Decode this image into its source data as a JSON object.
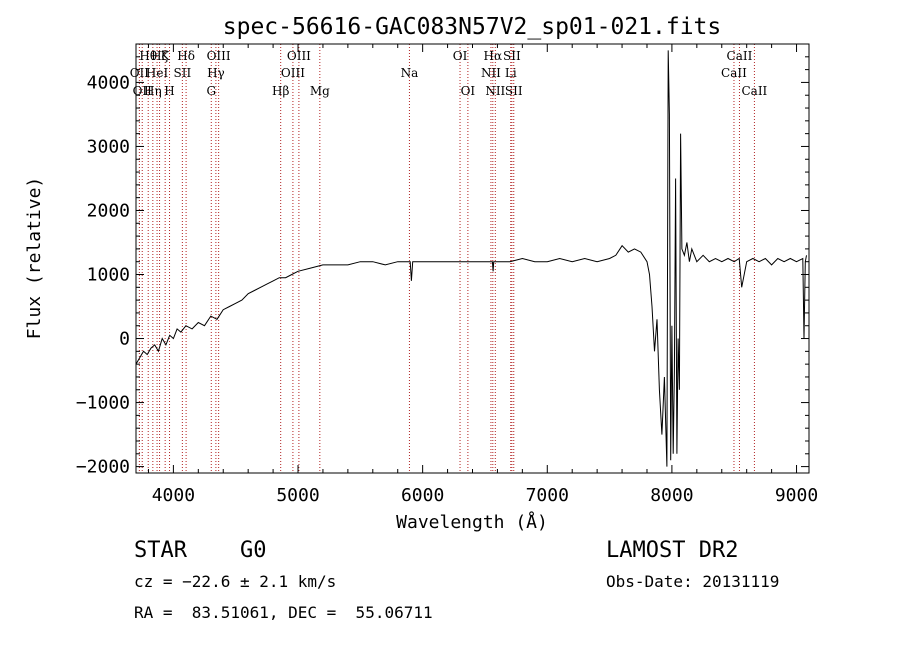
{
  "chart_data": {
    "type": "line",
    "title": "spec-56616-GAC083N57V2_sp01-021.fits",
    "xlabel": "Wavelength (Å)",
    "ylabel": "Flux (relative)",
    "xlim": [
      3700,
      9100
    ],
    "ylim": [
      -2100,
      4600
    ],
    "x_ticks": [
      4000,
      5000,
      6000,
      7000,
      8000,
      9000
    ],
    "x_tick_labels": [
      "4000",
      "5000",
      "6000",
      "7000",
      "8000",
      "9000"
    ],
    "y_ticks": [
      -2000,
      -1000,
      0,
      1000,
      2000,
      3000,
      4000
    ],
    "y_tick_labels": [
      "−2000",
      "−1000",
      "0",
      "1000",
      "2000",
      "3000",
      "4000"
    ],
    "grid": false,
    "line_color": "#000000",
    "marker_color": "#b22222",
    "series": [
      {
        "x": [
          3700,
          3730,
          3760,
          3790,
          3820,
          3850,
          3880,
          3910,
          3940,
          3970,
          4000,
          4030,
          4060,
          4100,
          4150,
          4200,
          4250,
          4300,
          4350,
          4400,
          4450,
          4500,
          4550,
          4600,
          4650,
          4700,
          4750,
          4800,
          4850,
          4900,
          4950,
          5000,
          5100,
          5200,
          5300,
          5400,
          5500,
          5600,
          5700,
          5800,
          5900,
          5910,
          5920,
          6000,
          6100,
          6200,
          6300,
          6400,
          6500,
          6560,
          6565,
          6570,
          6600,
          6700,
          6800,
          6900,
          7000,
          7100,
          7200,
          7300,
          7400,
          7500,
          7550,
          7600,
          7650,
          7700,
          7750,
          7800,
          7820,
          7840,
          7860,
          7880,
          7900,
          7920,
          7940,
          7960,
          7970,
          7980,
          7990,
          8000,
          8010,
          8020,
          8030,
          8040,
          8050,
          8060,
          8070,
          8080,
          8100,
          8120,
          8140,
          8160,
          8180,
          8200,
          8250,
          8300,
          8350,
          8400,
          8450,
          8500,
          8540,
          8560,
          8600,
          8650,
          8700,
          8750,
          8800,
          8850,
          8900,
          8950,
          9000,
          9050,
          9060,
          9070,
          9080
        ],
        "y": [
          -400,
          -300,
          -200,
          -250,
          -150,
          -100,
          -200,
          0,
          -100,
          50,
          0,
          150,
          100,
          200,
          150,
          250,
          200,
          350,
          300,
          450,
          500,
          550,
          600,
          700,
          750,
          800,
          850,
          900,
          950,
          950,
          1000,
          1050,
          1100,
          1150,
          1150,
          1150,
          1200,
          1200,
          1150,
          1200,
          1200,
          900,
          1200,
          1200,
          1200,
          1200,
          1200,
          1200,
          1200,
          1200,
          1050,
          1200,
          1200,
          1200,
          1250,
          1200,
          1200,
          1250,
          1200,
          1250,
          1200,
          1250,
          1300,
          1450,
          1350,
          1400,
          1350,
          1200,
          1000,
          500,
          -200,
          300,
          -800,
          -1500,
          -600,
          -2000,
          4500,
          3500,
          -1900,
          200,
          -1800,
          -500,
          2500,
          -1800,
          0,
          -800,
          3200,
          1400,
          1300,
          1500,
          1200,
          1400,
          1300,
          1200,
          1300,
          1200,
          1250,
          1200,
          1250,
          1200,
          1250,
          800,
          1200,
          1250,
          1200,
          1250,
          1150,
          1250,
          1200,
          1250,
          1200,
          1250,
          0,
          1200,
          1300
        ]
      }
    ],
    "lines": [
      {
        "x": 3727,
        "label": "OII",
        "row": 2
      },
      {
        "x": 3750,
        "label": "OII",
        "row": 3
      },
      {
        "x": 3798,
        "label": "Hθ",
        "row": 1
      },
      {
        "x": 3835,
        "label": "Hη",
        "row": 3
      },
      {
        "x": 3869,
        "label": "HeI",
        "row": 2
      },
      {
        "x": 3889,
        "label": "Hζ",
        "row": 1
      },
      {
        "x": 3934,
        "label": "K",
        "row": 1
      },
      {
        "x": 3969,
        "label": "H",
        "row": 3
      },
      {
        "x": 4072,
        "label": "SII",
        "row": 2
      },
      {
        "x": 4102,
        "label": "Hδ",
        "row": 1
      },
      {
        "x": 4304,
        "label": "G",
        "row": 3
      },
      {
        "x": 4341,
        "label": "Hγ",
        "row": 2
      },
      {
        "x": 4363,
        "label": "OIII",
        "row": 1
      },
      {
        "x": 4861,
        "label": "Hβ",
        "row": 3
      },
      {
        "x": 4959,
        "label": "OIII",
        "row": 2
      },
      {
        "x": 5007,
        "label": "OIII",
        "row": 1
      },
      {
        "x": 5175,
        "label": "Mg",
        "row": 3
      },
      {
        "x": 5894,
        "label": "Na",
        "row": 2
      },
      {
        "x": 6300,
        "label": "OI",
        "row": 1
      },
      {
        "x": 6363,
        "label": "OI",
        "row": 3
      },
      {
        "x": 6548,
        "label": "NII",
        "row": 2
      },
      {
        "x": 6563,
        "label": "Hα",
        "row": 1
      },
      {
        "x": 6583,
        "label": "NII",
        "row": 3
      },
      {
        "x": 6707,
        "label": "Li",
        "row": 2
      },
      {
        "x": 6716,
        "label": "SII",
        "row": 1
      },
      {
        "x": 6731,
        "label": "SII",
        "row": 3
      },
      {
        "x": 8498,
        "label": "CaII",
        "row": 2
      },
      {
        "x": 8542,
        "label": "CaII",
        "row": 1
      },
      {
        "x": 8662,
        "label": "CaII",
        "row": 3
      }
    ]
  },
  "info": {
    "class": "STAR",
    "subclass": "G0",
    "survey": "LAMOST DR2",
    "cz": "cz = −22.6 ± 2.1 km/s",
    "obs_date": "Obs-Date: 20131119",
    "coords": "RA =  83.51061, DEC =  55.06711"
  }
}
